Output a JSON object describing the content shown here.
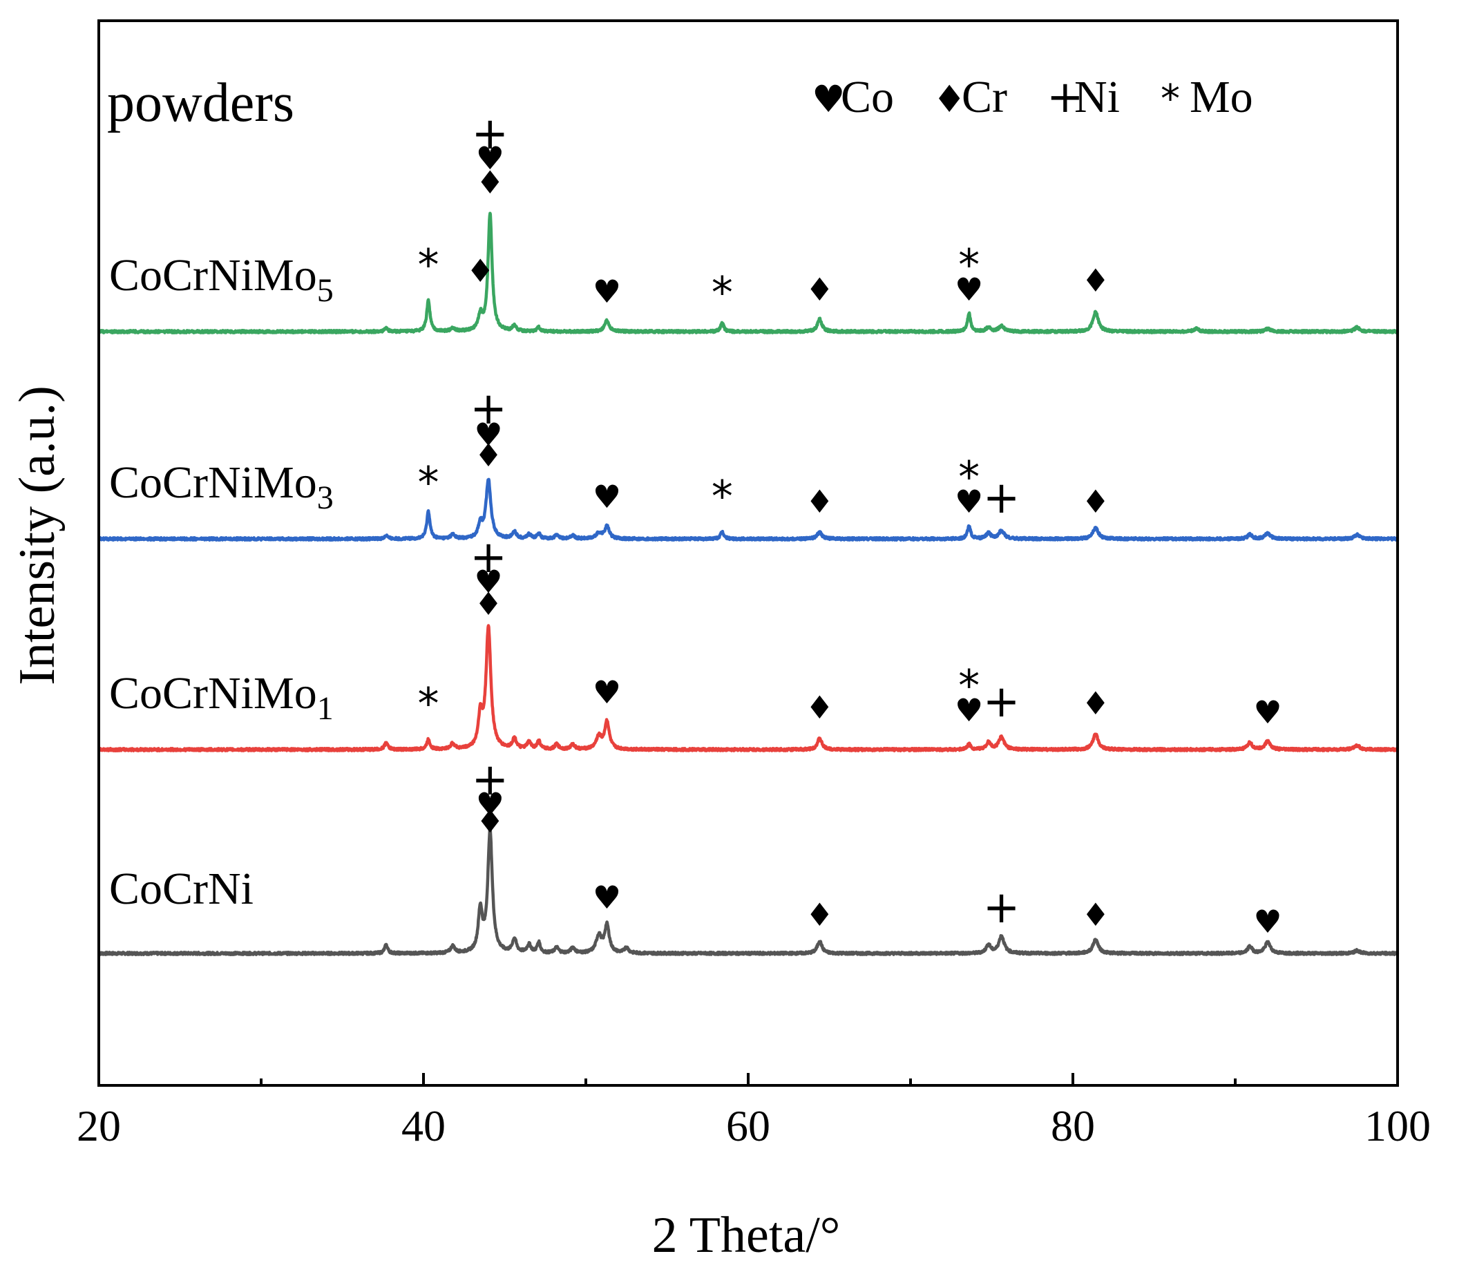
{
  "chart_data": {
    "type": "line",
    "xlabel": "2 Theta/°",
    "ylabel": "Intensity (a.u.)",
    "xlim": [
      20,
      100
    ],
    "ylim": [
      0,
      1
    ],
    "x_ticks": [
      20,
      40,
      60,
      80,
      100
    ],
    "x_minor_ticks": [
      30,
      50,
      70,
      90
    ],
    "annotation": "powders",
    "legend": [
      {
        "symbol": "♥",
        "label": "Co"
      },
      {
        "symbol": "♦",
        "label": "Cr"
      },
      {
        "symbol": "+",
        "label": "Ni"
      },
      {
        "symbol": "*",
        "label": "Mo"
      }
    ],
    "series": [
      {
        "name": "CoCrNi",
        "label_main": "CoCrNi",
        "label_sub": "",
        "color": "#555555",
        "baseline": 0.1,
        "peaks": [
          {
            "x": 37.7,
            "h": 0.012,
            "w": 0.12
          },
          {
            "x": 41.8,
            "h": 0.01,
            "w": 0.15
          },
          {
            "x": 43.5,
            "h": 0.06,
            "w": 0.15
          },
          {
            "x": 44.1,
            "h": 0.175,
            "w": 0.17
          },
          {
            "x": 45.6,
            "h": 0.02,
            "w": 0.15
          },
          {
            "x": 46.5,
            "h": 0.012,
            "w": 0.15
          },
          {
            "x": 47.1,
            "h": 0.015,
            "w": 0.12
          },
          {
            "x": 48.2,
            "h": 0.008,
            "w": 0.15
          },
          {
            "x": 49.2,
            "h": 0.008,
            "w": 0.15
          },
          {
            "x": 50.8,
            "h": 0.025,
            "w": 0.2
          },
          {
            "x": 51.3,
            "h": 0.04,
            "w": 0.17
          },
          {
            "x": 52.5,
            "h": 0.008,
            "w": 0.15
          },
          {
            "x": 64.4,
            "h": 0.018,
            "w": 0.17
          },
          {
            "x": 74.8,
            "h": 0.012,
            "w": 0.17
          },
          {
            "x": 75.6,
            "h": 0.025,
            "w": 0.2
          },
          {
            "x": 81.4,
            "h": 0.02,
            "w": 0.2
          },
          {
            "x": 90.9,
            "h": 0.01,
            "w": 0.17
          },
          {
            "x": 92.0,
            "h": 0.016,
            "w": 0.2
          },
          {
            "x": 97.5,
            "h": 0.004,
            "w": 0.2
          }
        ],
        "markers": [
          {
            "x": 44.1,
            "y": 0.275,
            "symbol": "♦"
          },
          {
            "x": 44.1,
            "y": 0.3,
            "symbol": "♥"
          },
          {
            "x": 44.1,
            "y": 0.33,
            "symbol": "+"
          },
          {
            "x": 51.3,
            "y": 0.165,
            "symbol": "♥"
          },
          {
            "x": 64.4,
            "y": 0.14,
            "symbol": "♦"
          },
          {
            "x": 75.6,
            "y": 0.145,
            "symbol": "+"
          },
          {
            "x": 81.4,
            "y": 0.14,
            "symbol": "♦"
          },
          {
            "x": 92.0,
            "y": 0.13,
            "symbol": "♥"
          }
        ]
      },
      {
        "name": "CoCrNiMo1",
        "label_main": "CoCrNiMo",
        "label_sub": "1",
        "color": "#e8413c",
        "baseline": 0.395,
        "peaks": [
          {
            "x": 37.7,
            "h": 0.01,
            "w": 0.12
          },
          {
            "x": 40.3,
            "h": 0.014,
            "w": 0.12
          },
          {
            "x": 41.8,
            "h": 0.008,
            "w": 0.15
          },
          {
            "x": 43.5,
            "h": 0.045,
            "w": 0.15
          },
          {
            "x": 44.0,
            "h": 0.175,
            "w": 0.18
          },
          {
            "x": 45.6,
            "h": 0.015,
            "w": 0.15
          },
          {
            "x": 46.5,
            "h": 0.01,
            "w": 0.15
          },
          {
            "x": 47.1,
            "h": 0.012,
            "w": 0.12
          },
          {
            "x": 48.2,
            "h": 0.007,
            "w": 0.15
          },
          {
            "x": 49.2,
            "h": 0.007,
            "w": 0.15
          },
          {
            "x": 50.8,
            "h": 0.018,
            "w": 0.2
          },
          {
            "x": 51.3,
            "h": 0.04,
            "w": 0.17
          },
          {
            "x": 64.4,
            "h": 0.016,
            "w": 0.17
          },
          {
            "x": 73.6,
            "h": 0.008,
            "w": 0.12
          },
          {
            "x": 74.8,
            "h": 0.01,
            "w": 0.17
          },
          {
            "x": 75.6,
            "h": 0.018,
            "w": 0.2
          },
          {
            "x": 81.4,
            "h": 0.022,
            "w": 0.2
          },
          {
            "x": 90.9,
            "h": 0.01,
            "w": 0.17
          },
          {
            "x": 92.0,
            "h": 0.012,
            "w": 0.2
          },
          {
            "x": 97.5,
            "h": 0.006,
            "w": 0.2
          }
        ],
        "markers": [
          {
            "x": 40.3,
            "y": 0.44,
            "symbol": "*"
          },
          {
            "x": 44.0,
            "y": 0.59,
            "symbol": "♦"
          },
          {
            "x": 44.0,
            "y": 0.622,
            "symbol": "♥"
          },
          {
            "x": 44.0,
            "y": 0.652,
            "symbol": "+"
          },
          {
            "x": 51.3,
            "y": 0.462,
            "symbol": "♥"
          },
          {
            "x": 64.4,
            "y": 0.44,
            "symbol": "♦"
          },
          {
            "x": 73.6,
            "y": 0.436,
            "symbol": "♥"
          },
          {
            "x": 73.6,
            "y": 0.466,
            "symbol": "*"
          },
          {
            "x": 75.6,
            "y": 0.443,
            "symbol": "+"
          },
          {
            "x": 81.4,
            "y": 0.446,
            "symbol": "♦"
          },
          {
            "x": 92.0,
            "y": 0.433,
            "symbol": "♥"
          }
        ]
      },
      {
        "name": "CoCrNiMo3",
        "label_main": "CoCrNiMo",
        "label_sub": "3",
        "color": "#2f67c7",
        "baseline": 0.7,
        "peaks": [
          {
            "x": 37.7,
            "h": 0.005,
            "w": 0.12
          },
          {
            "x": 40.3,
            "h": 0.04,
            "w": 0.12
          },
          {
            "x": 41.8,
            "h": 0.006,
            "w": 0.15
          },
          {
            "x": 43.5,
            "h": 0.02,
            "w": 0.15
          },
          {
            "x": 44.0,
            "h": 0.085,
            "w": 0.18
          },
          {
            "x": 45.6,
            "h": 0.01,
            "w": 0.15
          },
          {
            "x": 46.5,
            "h": 0.006,
            "w": 0.15
          },
          {
            "x": 47.1,
            "h": 0.008,
            "w": 0.12
          },
          {
            "x": 48.2,
            "h": 0.005,
            "w": 0.15
          },
          {
            "x": 49.2,
            "h": 0.005,
            "w": 0.15
          },
          {
            "x": 50.8,
            "h": 0.008,
            "w": 0.2
          },
          {
            "x": 51.3,
            "h": 0.018,
            "w": 0.17
          },
          {
            "x": 58.4,
            "h": 0.01,
            "w": 0.12
          },
          {
            "x": 64.4,
            "h": 0.01,
            "w": 0.17
          },
          {
            "x": 73.6,
            "h": 0.018,
            "w": 0.12
          },
          {
            "x": 74.8,
            "h": 0.008,
            "w": 0.17
          },
          {
            "x": 75.6,
            "h": 0.012,
            "w": 0.2
          },
          {
            "x": 81.4,
            "h": 0.016,
            "w": 0.2
          },
          {
            "x": 90.9,
            "h": 0.006,
            "w": 0.17
          },
          {
            "x": 92.0,
            "h": 0.008,
            "w": 0.2
          },
          {
            "x": 97.5,
            "h": 0.006,
            "w": 0.2
          }
        ],
        "markers": [
          {
            "x": 40.3,
            "y": 0.76,
            "symbol": "*"
          },
          {
            "x": 44.0,
            "y": 0.805,
            "symbol": "♦"
          },
          {
            "x": 44.0,
            "y": 0.835,
            "symbol": "♥"
          },
          {
            "x": 44.0,
            "y": 0.867,
            "symbol": "+"
          },
          {
            "x": 51.3,
            "y": 0.745,
            "symbol": "♥"
          },
          {
            "x": 58.4,
            "y": 0.74,
            "symbol": "*"
          },
          {
            "x": 64.4,
            "y": 0.738,
            "symbol": "♦"
          },
          {
            "x": 73.6,
            "y": 0.738,
            "symbol": "♥"
          },
          {
            "x": 73.6,
            "y": 0.768,
            "symbol": "*"
          },
          {
            "x": 75.6,
            "y": 0.738,
            "symbol": "+"
          },
          {
            "x": 81.4,
            "y": 0.738,
            "symbol": "♦"
          }
        ]
      },
      {
        "name": "CoCrNiMo5",
        "label_main": "CoCrNiMo",
        "label_sub": "5",
        "color": "#3aa660",
        "baseline": 1.0,
        "peaks": [
          {
            "x": 37.7,
            "h": 0.005,
            "w": 0.12
          },
          {
            "x": 40.3,
            "h": 0.045,
            "w": 0.12
          },
          {
            "x": 41.8,
            "h": 0.005,
            "w": 0.15
          },
          {
            "x": 43.5,
            "h": 0.022,
            "w": 0.15
          },
          {
            "x": 44.1,
            "h": 0.17,
            "w": 0.15
          },
          {
            "x": 45.6,
            "h": 0.008,
            "w": 0.15
          },
          {
            "x": 47.1,
            "h": 0.006,
            "w": 0.12
          },
          {
            "x": 51.3,
            "h": 0.016,
            "w": 0.17
          },
          {
            "x": 58.4,
            "h": 0.012,
            "w": 0.12
          },
          {
            "x": 64.4,
            "h": 0.018,
            "w": 0.17
          },
          {
            "x": 73.6,
            "h": 0.026,
            "w": 0.12
          },
          {
            "x": 74.8,
            "h": 0.006,
            "w": 0.17
          },
          {
            "x": 75.6,
            "h": 0.008,
            "w": 0.2
          },
          {
            "x": 81.4,
            "h": 0.028,
            "w": 0.2
          },
          {
            "x": 87.6,
            "h": 0.004,
            "w": 0.2
          },
          {
            "x": 92.0,
            "h": 0.004,
            "w": 0.2
          },
          {
            "x": 97.5,
            "h": 0.006,
            "w": 0.2
          }
        ],
        "markers": [
          {
            "x": 40.3,
            "y": 1.075,
            "symbol": "*"
          },
          {
            "x": 43.5,
            "y": 1.072,
            "symbol": "♦"
          },
          {
            "x": 44.1,
            "y": 1.2,
            "symbol": "♦"
          },
          {
            "x": 44.1,
            "y": 1.235,
            "symbol": "♥"
          },
          {
            "x": 44.1,
            "y": 1.265,
            "symbol": "+"
          },
          {
            "x": 51.3,
            "y": 1.042,
            "symbol": "♥"
          },
          {
            "x": 58.4,
            "y": 1.035,
            "symbol": "*"
          },
          {
            "x": 64.4,
            "y": 1.045,
            "symbol": "♦"
          },
          {
            "x": 73.6,
            "y": 1.045,
            "symbol": "♥"
          },
          {
            "x": 73.6,
            "y": 1.075,
            "symbol": "*"
          },
          {
            "x": 81.4,
            "y": 1.058,
            "symbol": "♦"
          }
        ]
      }
    ]
  }
}
